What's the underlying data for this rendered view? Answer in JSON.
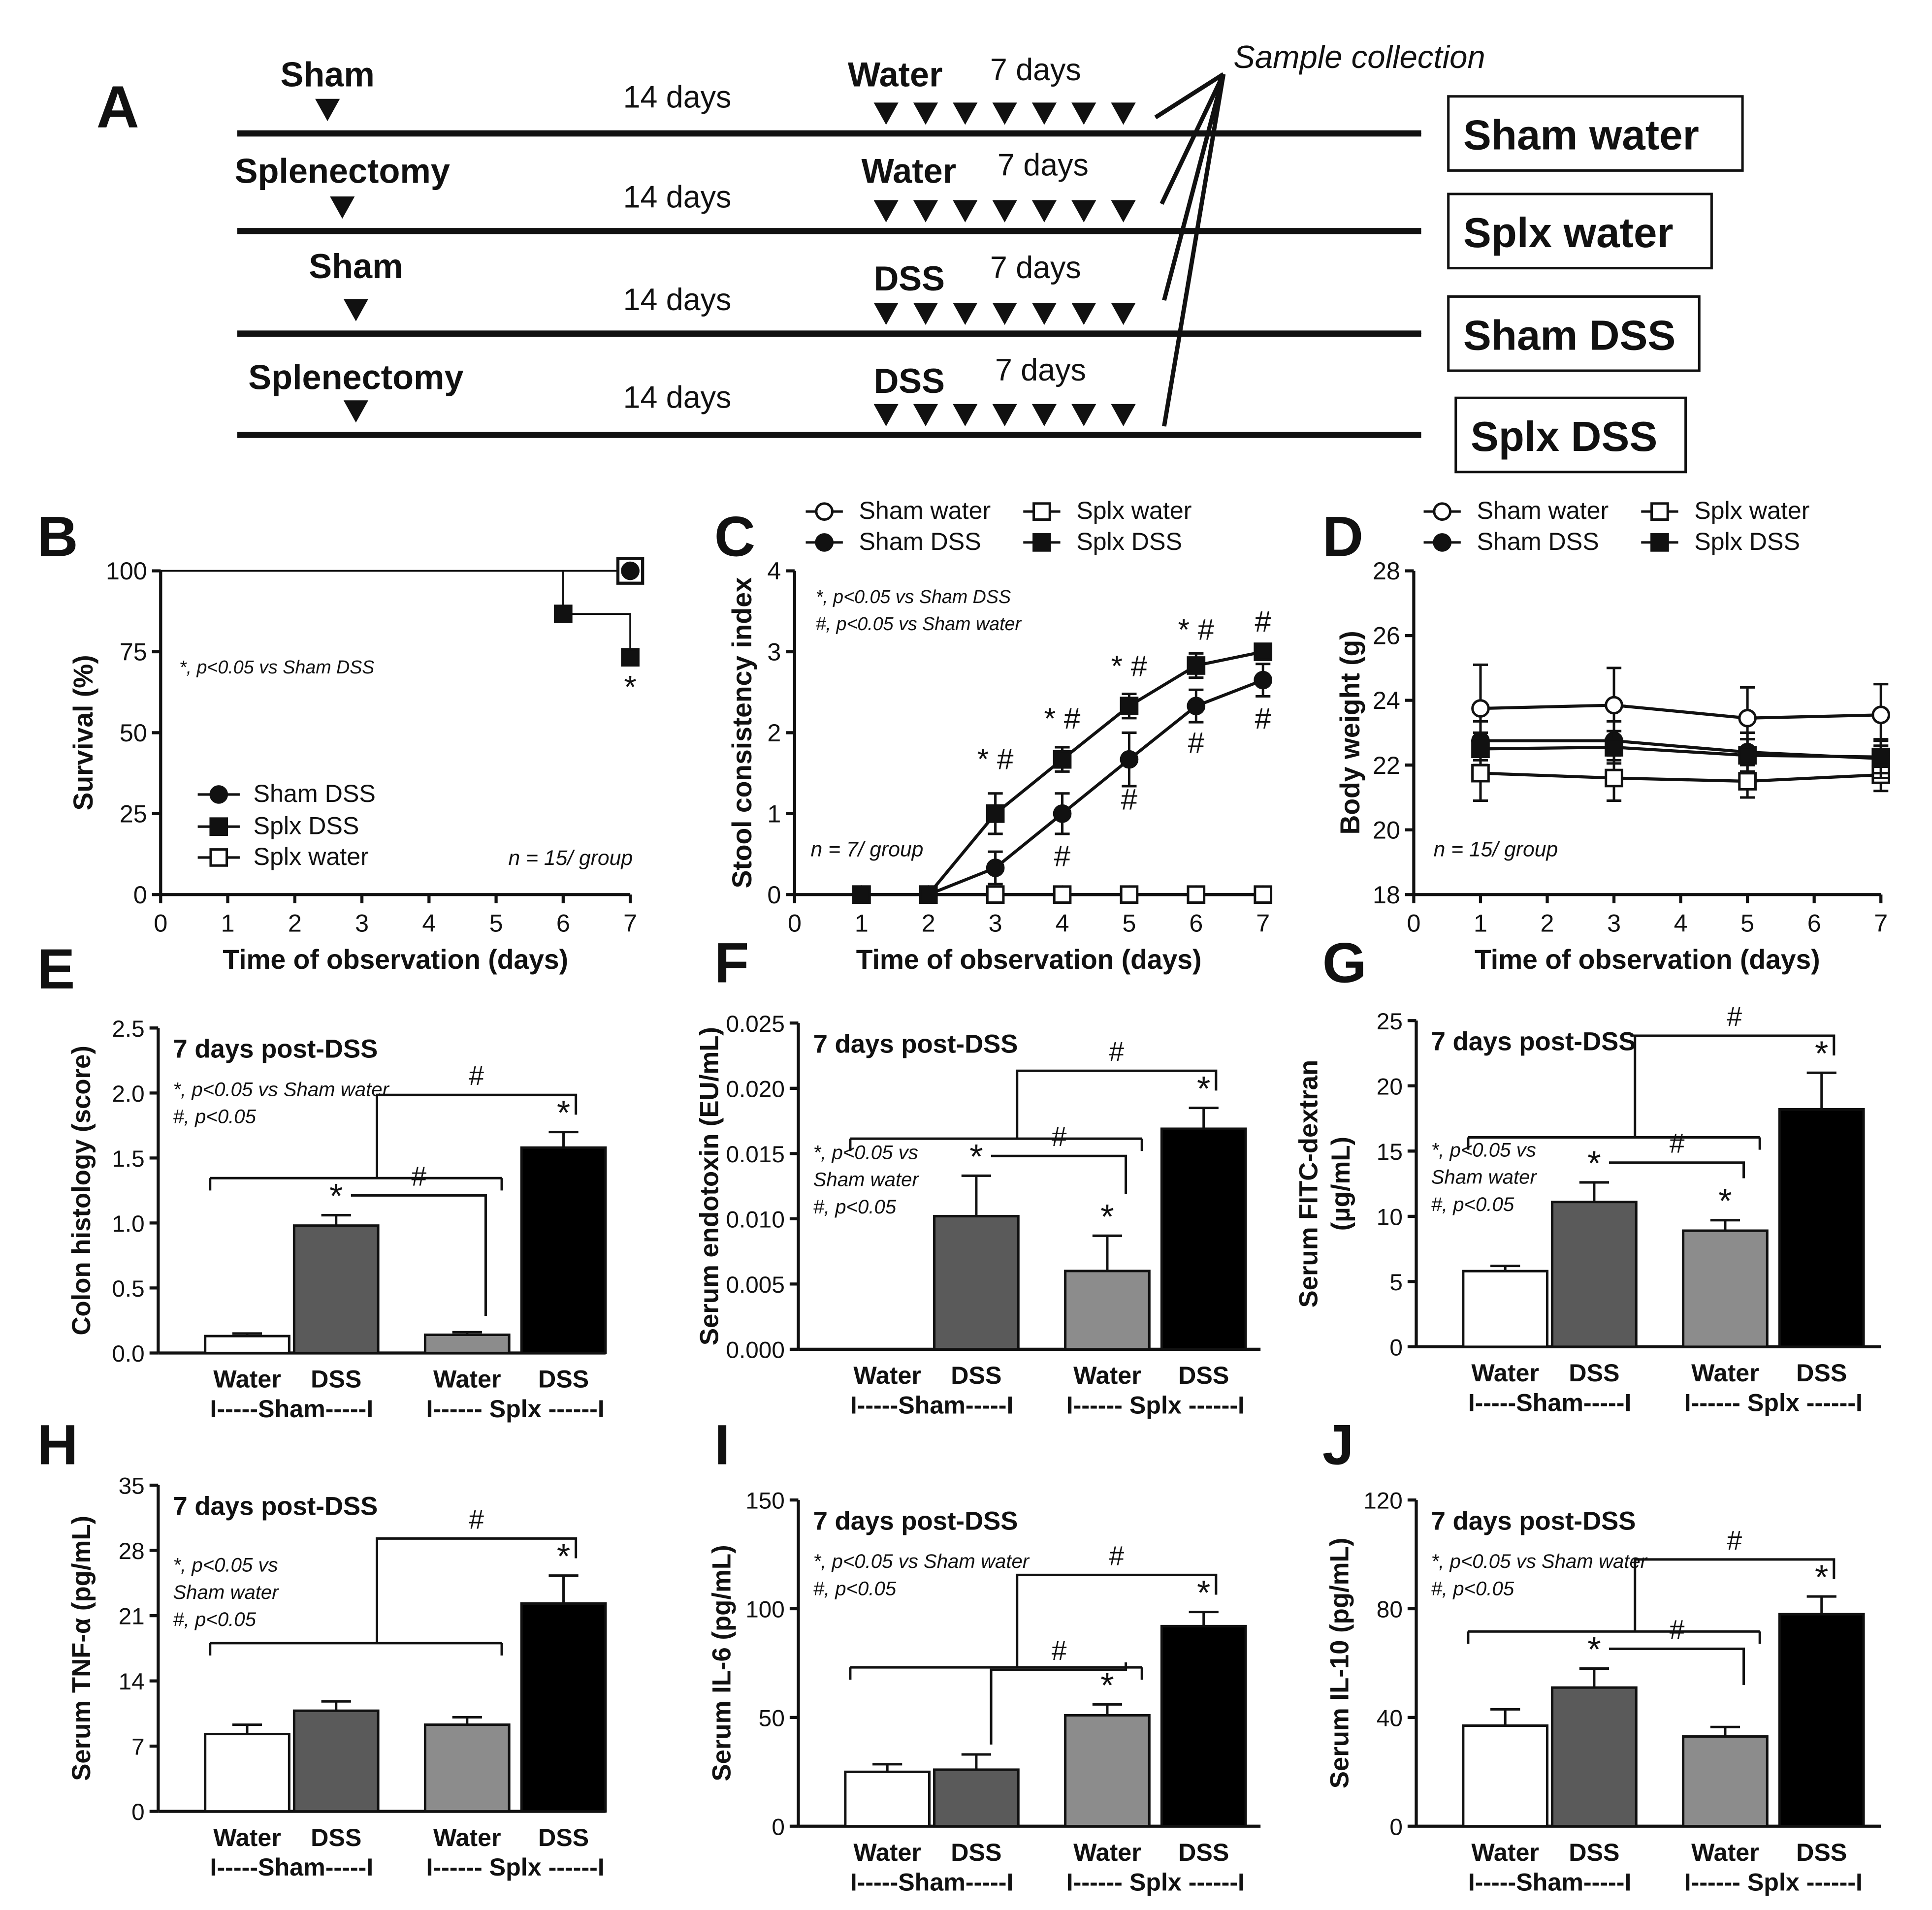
{
  "panelA": {
    "letter": "A",
    "sample_collection": "Sample collection",
    "rows": [
      {
        "surgery": "Sham",
        "period": "14 days",
        "treatment": "Water",
        "days": "7 days",
        "group": "Sham water"
      },
      {
        "surgery": "Splenectomy",
        "period": "14 days",
        "treatment": "Water",
        "days": "7 days",
        "group": "Splx water"
      },
      {
        "surgery": "Sham",
        "period": "14 days",
        "treatment": "DSS",
        "days": "7 days",
        "group": "Sham DSS"
      },
      {
        "surgery": "Splenectomy",
        "period": "14 days",
        "treatment": "DSS",
        "days": "7 days",
        "group": "Splx DSS"
      }
    ]
  },
  "chart_data": [
    {
      "id": "B",
      "letter": "B",
      "type": "line",
      "subtype": "survival-step",
      "xlabel": "Time of observation (days)",
      "ylabel": "Survival (%)",
      "xlim": [
        0,
        7
      ],
      "ylim": [
        0,
        100
      ],
      "xticks": [
        "0",
        "1",
        "2",
        "3",
        "4",
        "5",
        "6",
        "7"
      ],
      "yticks": [
        "0",
        "25",
        "50",
        "75",
        "100"
      ],
      "note": "*, p<0.05 vs Sham DSS",
      "n_label": "n = 15/ group",
      "series": [
        {
          "name": "Sham DSS",
          "marker": "circle-filled",
          "x": [
            0,
            7
          ],
          "y": [
            100,
            100
          ]
        },
        {
          "name": "Splx DSS",
          "marker": "square-filled",
          "x": [
            0,
            6,
            7
          ],
          "y": [
            100,
            86.7,
            73.3
          ]
        },
        {
          "name": "Splx water",
          "marker": "square-open",
          "x": [
            0,
            7
          ],
          "y": [
            100,
            100
          ]
        }
      ],
      "annotations": [
        {
          "x": 7,
          "text": "*"
        }
      ]
    },
    {
      "id": "C",
      "letter": "C",
      "type": "line",
      "xlabel": "Time of observation (days)",
      "ylabel": "Stool consistency index",
      "xlim": [
        0,
        7
      ],
      "ylim": [
        0,
        4
      ],
      "xticks": [
        "0",
        "1",
        "2",
        "3",
        "4",
        "5",
        "6",
        "7"
      ],
      "yticks": [
        "0",
        "1",
        "2",
        "3",
        "4"
      ],
      "notes": [
        "*, p<0.05 vs Sham DSS",
        "#, p<0.05 vs Sham water"
      ],
      "n_label": "n = 7/ group",
      "legend": [
        {
          "name": "Sham water",
          "marker": "circle-open"
        },
        {
          "name": "Splx water",
          "marker": "square-open"
        },
        {
          "name": "Sham DSS",
          "marker": "circle-filled"
        },
        {
          "name": "Splx DSS",
          "marker": "square-filled"
        }
      ],
      "x": [
        1,
        2,
        3,
        4,
        5,
        6,
        7
      ],
      "series": [
        {
          "name": "Sham water",
          "marker": "circle-open",
          "values": [
            0,
            0,
            0,
            0,
            0,
            0,
            0
          ],
          "err": [
            0,
            0,
            0,
            0,
            0,
            0,
            0
          ]
        },
        {
          "name": "Splx water",
          "marker": "square-open",
          "values": [
            0,
            0,
            0,
            0,
            0,
            0,
            0
          ],
          "err": [
            0,
            0,
            0,
            0,
            0,
            0,
            0
          ]
        },
        {
          "name": "Sham DSS",
          "marker": "circle-filled",
          "values": [
            0,
            0,
            0.33,
            1.0,
            1.67,
            2.33,
            2.65
          ],
          "err": [
            0,
            0,
            0.2,
            0.25,
            0.33,
            0.2,
            0.2
          ]
        },
        {
          "name": "Splx DSS",
          "marker": "square-filled",
          "values": [
            0,
            0,
            1.0,
            1.67,
            2.33,
            2.83,
            3.0
          ],
          "err": [
            0,
            0,
            0.25,
            0.15,
            0.15,
            0.15,
            0
          ]
        }
      ],
      "annotations": [
        {
          "x": 3,
          "y": 1.55,
          "text": "* #"
        },
        {
          "x": 4,
          "y": 2.05,
          "text": "* #"
        },
        {
          "x": 5,
          "y": 2.7,
          "text": "* #"
        },
        {
          "x": 6,
          "y": 3.15,
          "text": "* #"
        },
        {
          "x": 7,
          "y": 3.25,
          "text": "#"
        },
        {
          "x": 4,
          "y": 0.35,
          "text": "#"
        },
        {
          "x": 5,
          "y": 1.05,
          "text": "#"
        },
        {
          "x": 6,
          "y": 1.75,
          "text": "#"
        },
        {
          "x": 7,
          "y": 2.05,
          "text": "#"
        }
      ]
    },
    {
      "id": "D",
      "letter": "D",
      "type": "line",
      "xlabel": "Time of observation (days)",
      "ylabel": "Body weight (g)",
      "xlim": [
        0,
        7
      ],
      "ylim": [
        18,
        28
      ],
      "xticks": [
        "0",
        "1",
        "2",
        "3",
        "4",
        "5",
        "6",
        "7"
      ],
      "yticks": [
        "18",
        "20",
        "22",
        "24",
        "26",
        "28"
      ],
      "n_label": "n = 15/ group",
      "legend": [
        {
          "name": "Sham water",
          "marker": "circle-open"
        },
        {
          "name": "Splx water",
          "marker": "square-open"
        },
        {
          "name": "Sham DSS",
          "marker": "circle-filled"
        },
        {
          "name": "Splx DSS",
          "marker": "square-filled"
        }
      ],
      "x": [
        1,
        3,
        5,
        7
      ],
      "series": [
        {
          "name": "Sham water",
          "marker": "circle-open",
          "values": [
            23.75,
            23.85,
            23.45,
            23.55
          ],
          "err": [
            1.35,
            1.15,
            0.95,
            0.95
          ]
        },
        {
          "name": "Splx water",
          "marker": "square-open",
          "values": [
            21.75,
            21.6,
            21.5,
            21.7
          ],
          "err": [
            0.85,
            0.7,
            0.5,
            0.5
          ]
        },
        {
          "name": "Sham DSS",
          "marker": "circle-filled",
          "values": [
            22.75,
            22.75,
            22.4,
            22.2
          ],
          "err": [
            0.6,
            0.6,
            0.6,
            0.6
          ]
        },
        {
          "name": "Splx DSS",
          "marker": "square-filled",
          "values": [
            22.5,
            22.55,
            22.3,
            22.25
          ],
          "err": [
            0.5,
            0.5,
            0.5,
            0.5
          ]
        }
      ]
    },
    {
      "id": "E",
      "letter": "E",
      "type": "bar",
      "ylabel": "Colon histology (score)",
      "ylim": [
        0,
        2.5
      ],
      "yticks": [
        "0.0",
        "0.5",
        "1.0",
        "1.5",
        "2.0",
        "2.5"
      ],
      "title": "7 days post-DSS",
      "notes": [
        "*, p<0.05 vs Sham water",
        "#, p<0.05"
      ],
      "categories": [
        "Water",
        "DSS",
        "Water",
        "DSS"
      ],
      "groups": [
        "I-----Sham-----I",
        "I------ Splx ------I"
      ],
      "values": [
        0.13,
        0.98,
        0.14,
        1.58
      ],
      "err": [
        0.02,
        0.08,
        0.02,
        0.12
      ],
      "stars": [
        "",
        "*",
        "",
        "*"
      ]
    },
    {
      "id": "F",
      "letter": "F",
      "type": "bar",
      "ylabel": "Serum endotoxin (EU/mL)",
      "ylim": [
        0,
        0.025
      ],
      "yticks": [
        "0.000",
        "0.005",
        "0.010",
        "0.015",
        "0.020",
        "0.025"
      ],
      "title": "7 days post-DSS",
      "notes": [
        "*, p<0.05 vs",
        "Sham water",
        "#, p<0.05"
      ],
      "categories": [
        "Water",
        "DSS",
        "Water",
        "DSS"
      ],
      "groups": [
        "I-----Sham-----I",
        "I------ Splx ------I"
      ],
      "values": [
        0,
        0.0102,
        0.006,
        0.0169
      ],
      "err": [
        0,
        0.0031,
        0.0027,
        0.0016
      ],
      "stars": [
        "",
        "*",
        "*",
        "*"
      ]
    },
    {
      "id": "G",
      "letter": "G",
      "type": "bar",
      "ylabel": "Serum FITC-dextran",
      "ylabel2": "(µg/mL)",
      "ylim": [
        0,
        25
      ],
      "yticks": [
        "0",
        "5",
        "10",
        "15",
        "20",
        "25"
      ],
      "title": "7 days post-DSS",
      "notes": [
        "*, p<0.05 vs",
        "Sham water",
        "#, p<0.05"
      ],
      "categories": [
        "Water",
        "DSS",
        "Water",
        "DSS"
      ],
      "groups": [
        "I-----Sham-----I",
        "I------ Splx ------I"
      ],
      "values": [
        5.8,
        11.1,
        8.9,
        18.2
      ],
      "err": [
        0.4,
        1.5,
        0.8,
        2.8
      ],
      "stars": [
        "",
        "*",
        "*",
        "*"
      ]
    },
    {
      "id": "H",
      "letter": "H",
      "type": "bar",
      "ylabel": "Serum TNF-α (pg/mL)",
      "ylim": [
        0,
        35
      ],
      "yticks": [
        "0",
        "7",
        "14",
        "21",
        "28",
        "35"
      ],
      "title": "7 days post-DSS",
      "notes": [
        "*, p<0.05 vs",
        "Sham water",
        "#, p<0.05"
      ],
      "categories": [
        "Water",
        "DSS",
        "Water",
        "DSS"
      ],
      "groups": [
        "I-----Sham-----I",
        "I------ Splx ------I"
      ],
      "values": [
        8.3,
        10.8,
        9.3,
        22.3
      ],
      "err": [
        1.0,
        1.0,
        0.8,
        3.0
      ],
      "stars": [
        "",
        "",
        "",
        "*"
      ]
    },
    {
      "id": "I",
      "letter": "I",
      "type": "bar",
      "ylabel": "Serum IL-6 (pg/mL)",
      "ylim": [
        0,
        150
      ],
      "yticks": [
        "0",
        "50",
        "100",
        "150"
      ],
      "title": "7 days post-DSS",
      "notes": [
        "*, p<0.05 vs Sham water",
        "#, p<0.05"
      ],
      "categories": [
        "Water",
        "DSS",
        "Water",
        "DSS"
      ],
      "groups": [
        "I-----Sham-----I",
        "I------ Splx ------I"
      ],
      "values": [
        25,
        26,
        51,
        92
      ],
      "err": [
        3.5,
        7,
        5,
        6.5
      ],
      "stars": [
        "",
        "",
        "*",
        "*"
      ]
    },
    {
      "id": "J",
      "letter": "J",
      "type": "bar",
      "ylabel": "Serum IL-10 (pg/mL)",
      "ylim": [
        0,
        120
      ],
      "yticks": [
        "0",
        "40",
        "80",
        "120"
      ],
      "title": "7 days post-DSS",
      "notes": [
        "*, p<0.05 vs Sham water",
        "#, p<0.05"
      ],
      "categories": [
        "Water",
        "DSS",
        "Water",
        "DSS"
      ],
      "groups": [
        "I-----Sham-----I",
        "I------ Splx ------I"
      ],
      "values": [
        37,
        51,
        33,
        78
      ],
      "err": [
        6,
        7,
        3.5,
        6.5
      ],
      "stars": [
        "",
        "*",
        "",
        "*"
      ]
    }
  ]
}
